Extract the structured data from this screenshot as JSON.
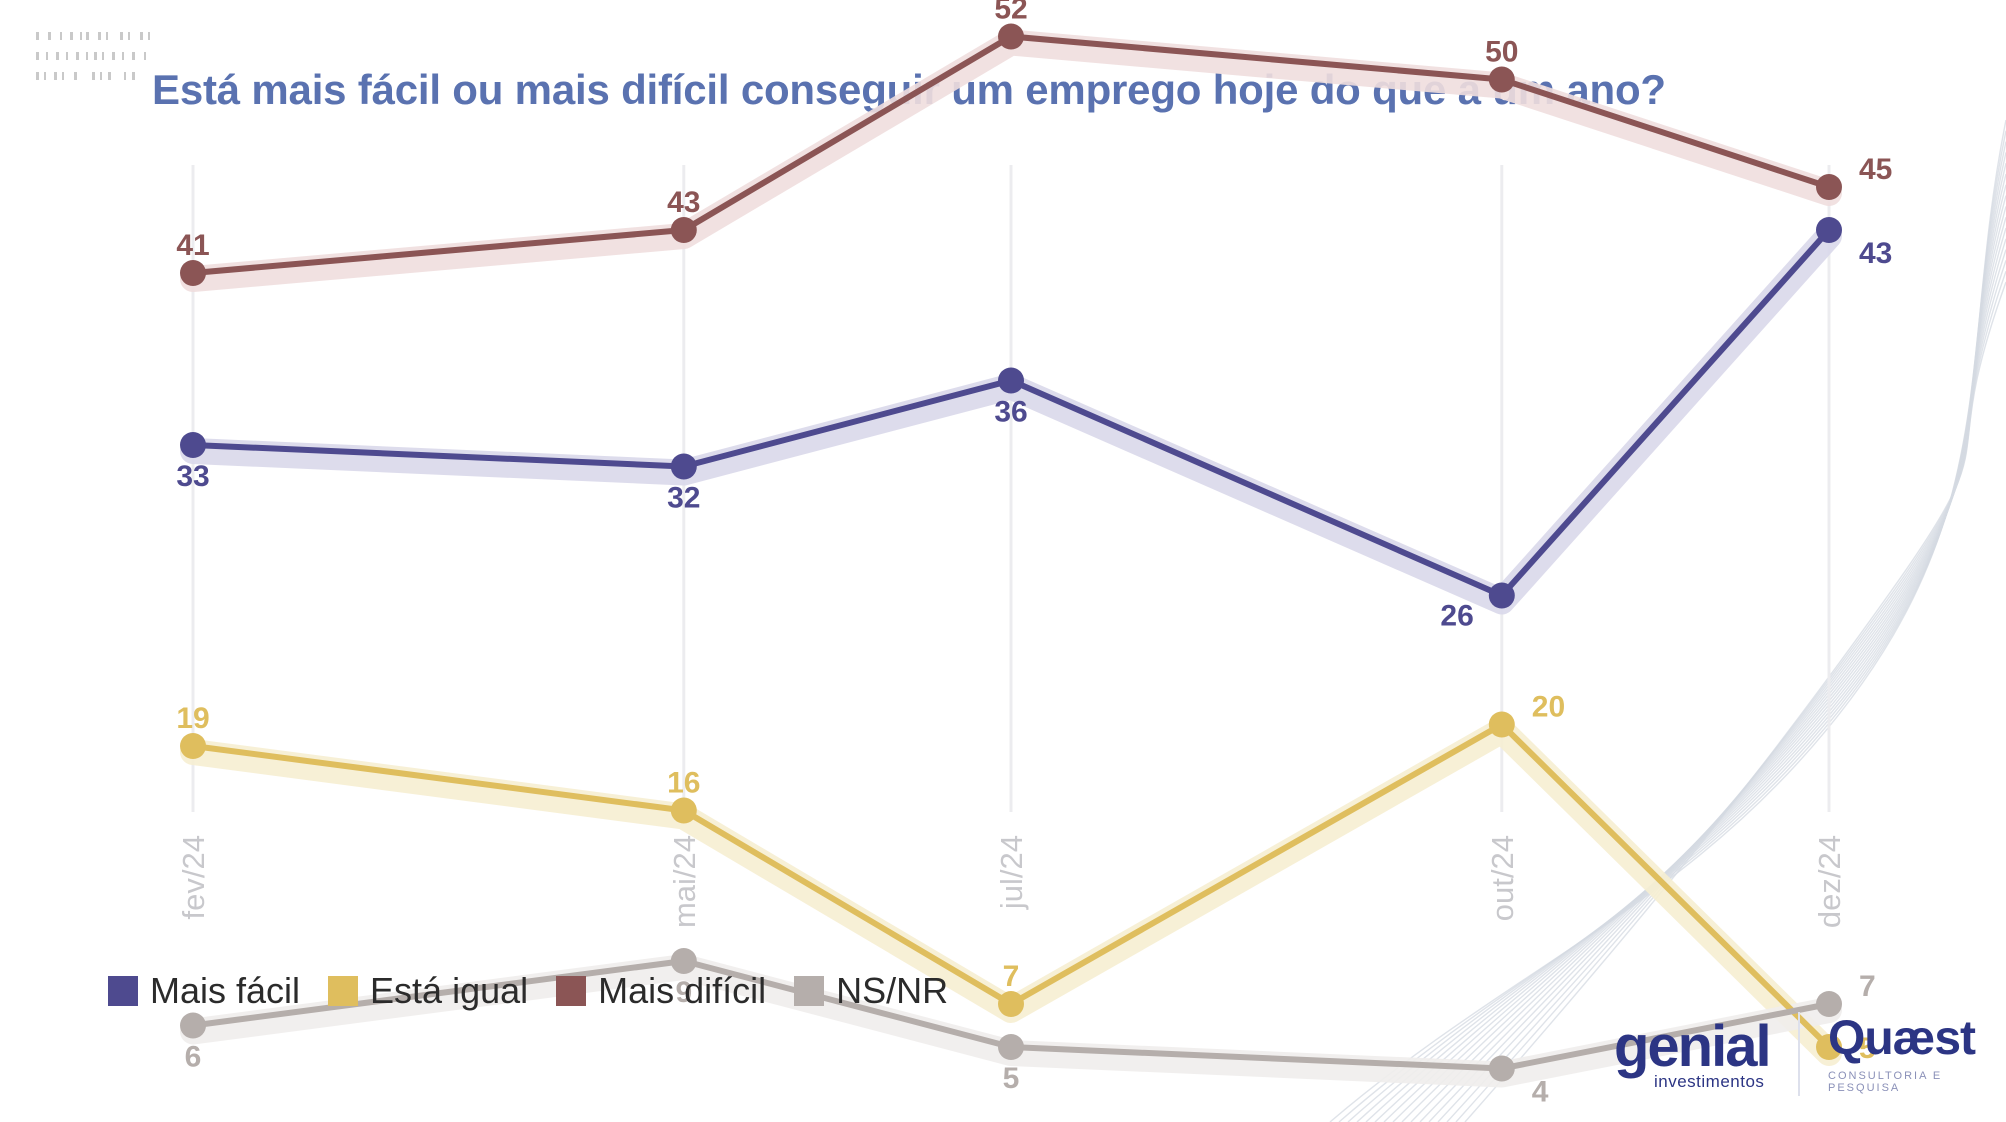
{
  "title": "Está mais fácil ou mais difícil conseguir um emprego hoje do que a um ano?",
  "chart_data": {
    "type": "line",
    "title": "Está mais fácil ou mais difícil conseguir um emprego hoje do que a um ano?",
    "categories": [
      "fev/24",
      "mai/24",
      "jul/24",
      "out/24",
      "dez/24"
    ],
    "x": [
      0,
      3,
      5,
      8,
      10
    ],
    "ylim": [
      0,
      60
    ],
    "series": [
      {
        "name": "Mais fácil",
        "color": "#4e4a8f",
        "band": "#d9d8ea",
        "values": [
          33,
          32,
          36,
          26,
          43
        ],
        "label_pos": [
          "below",
          "below",
          "below",
          "below",
          "right-below"
        ]
      },
      {
        "name": "Está igual",
        "color": "#dfbe5e",
        "band": "#f6eed2",
        "values": [
          19,
          16,
          7,
          20,
          5
        ],
        "label_pos": [
          "above",
          "above",
          "above",
          "right-above",
          "right"
        ]
      },
      {
        "name": "Mais difícil",
        "color": "#8b5555",
        "band": "#efdede",
        "values": [
          41,
          43,
          52,
          50,
          45
        ],
        "label_pos": [
          "above",
          "above",
          "above",
          "above",
          "right-above"
        ]
      },
      {
        "name": "NS/NR",
        "color": "#b5aeab",
        "band": "#efedec",
        "values": [
          6,
          9,
          5,
          4,
          7
        ],
        "label_pos": [
          "below",
          "below",
          "below",
          "right-below",
          "right-above"
        ]
      }
    ],
    "legend": "bottom-left"
  },
  "legend": {
    "items": [
      {
        "label": "Mais fácil",
        "color": "#4e4a8f"
      },
      {
        "label": "Está igual",
        "color": "#dfbe5e"
      },
      {
        "label": "Mais difícil",
        "color": "#8b5555"
      },
      {
        "label": "NS/NR",
        "color": "#b5aeab"
      }
    ]
  },
  "logos": {
    "genial": "genial",
    "genial_sub": "investimentos",
    "quaest": "Quæst",
    "quaest_sub": "CONSULTORIA E PESQUISA"
  }
}
